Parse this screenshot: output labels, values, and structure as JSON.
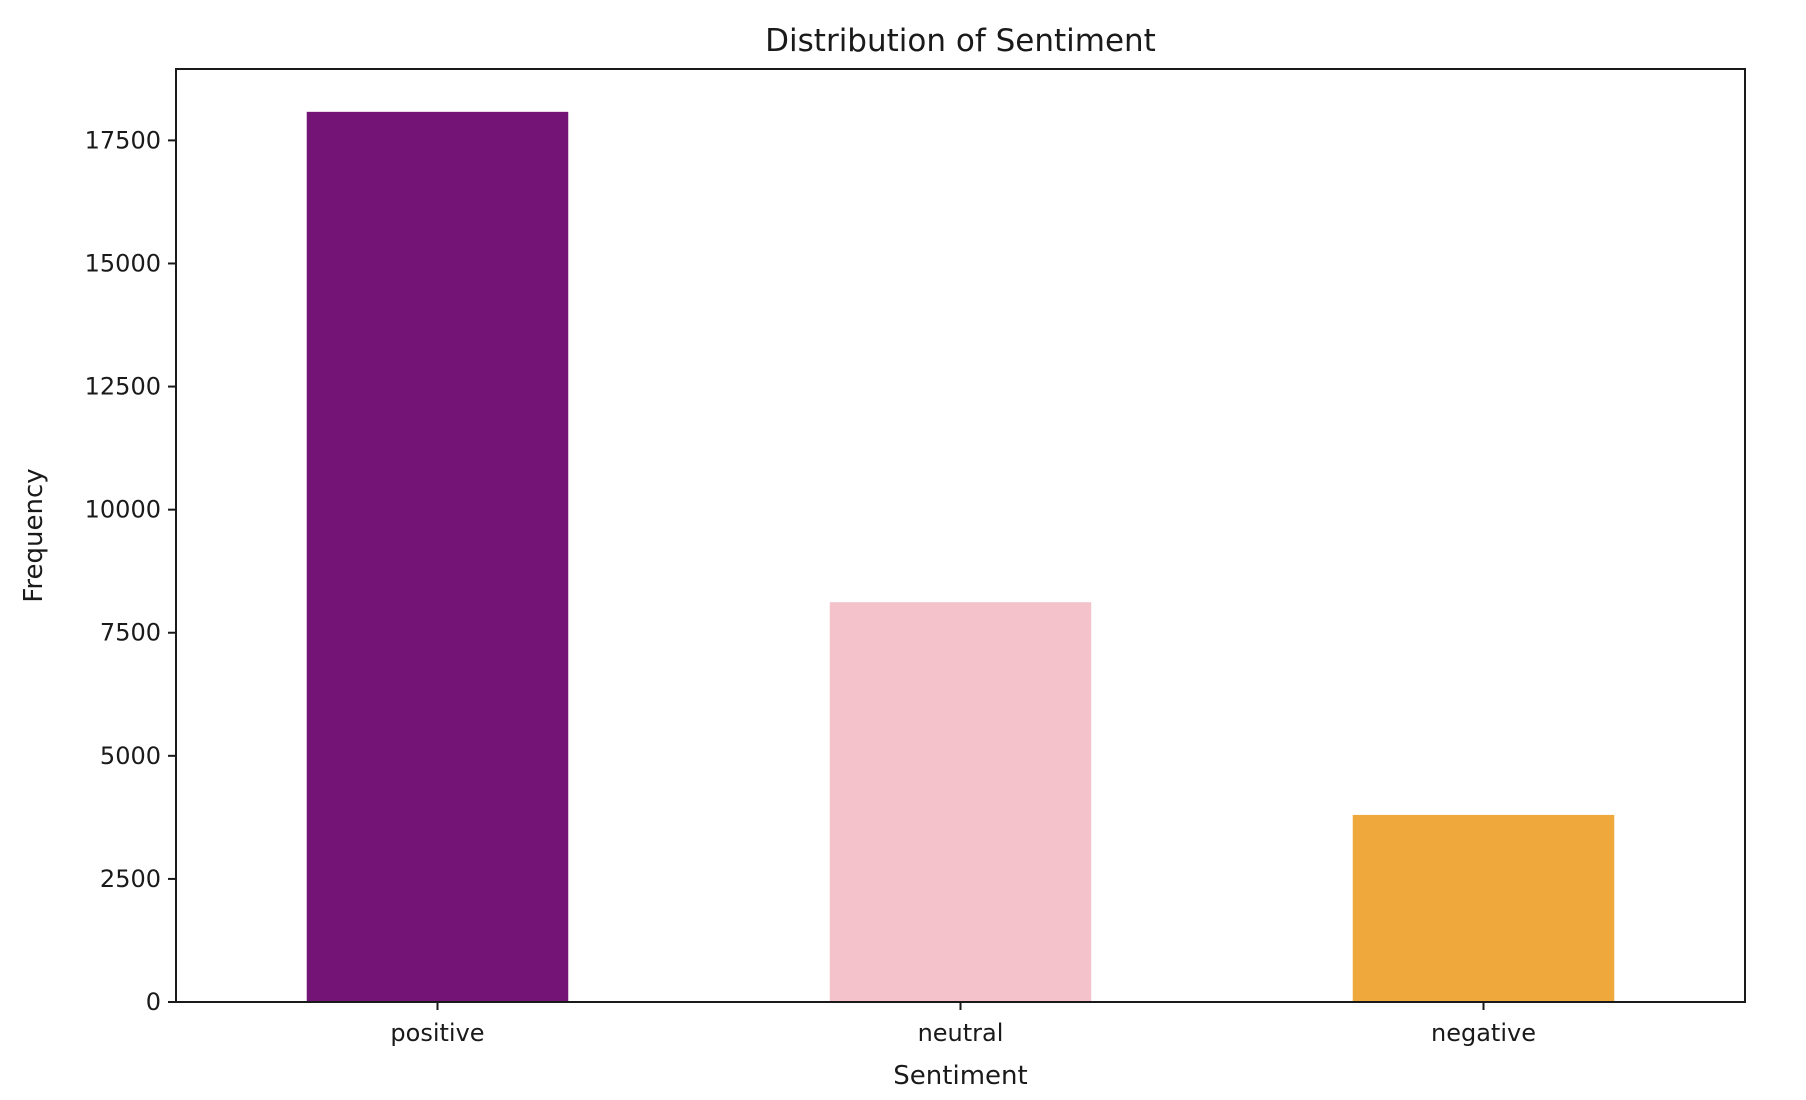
{
  "chart_data": {
    "type": "bar",
    "title": "Distribution of Sentiment",
    "xlabel": "Sentiment",
    "ylabel": "Frequency",
    "categories": [
      "positive",
      "neutral",
      "negative"
    ],
    "values": [
      18080,
      8120,
      3800
    ],
    "colors": [
      "#741476",
      "#F4C2CB",
      "#EFA83C"
    ],
    "ylim": [
      0,
      18950
    ],
    "yticks": [
      0,
      2500,
      5000,
      7500,
      10000,
      12500,
      15000,
      17500
    ],
    "ytick_labels": [
      "0",
      "2500",
      "5000",
      "7500",
      "10000",
      "12500",
      "15000",
      "17500"
    ],
    "grid": false,
    "legend": "none"
  }
}
